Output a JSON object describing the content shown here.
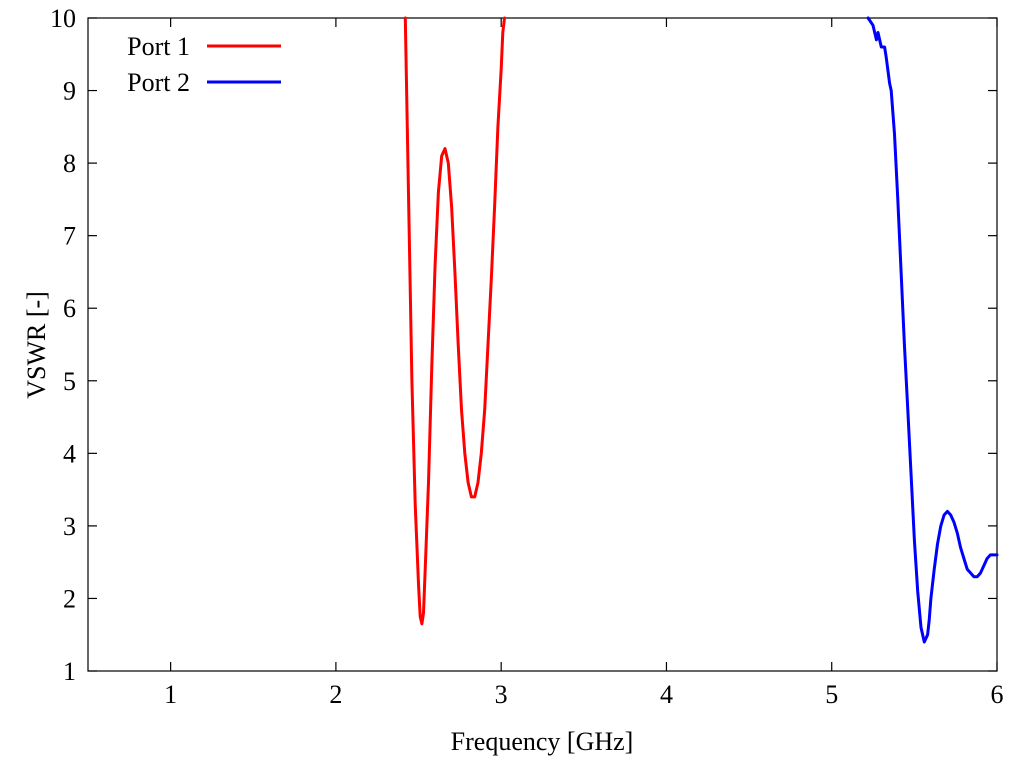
{
  "chart_data": {
    "type": "line",
    "xlabel": "Frequency [GHz]",
    "ylabel": "VSWR [-]",
    "xlim": [
      0.5,
      6
    ],
    "ylim": [
      1,
      10
    ],
    "xticks": [
      1,
      2,
      3,
      4,
      5,
      6
    ],
    "yticks": [
      1,
      2,
      3,
      4,
      5,
      6,
      7,
      8,
      9,
      10
    ],
    "grid": false,
    "legend_position": "top-left",
    "series": [
      {
        "name": "Port 1",
        "color": "#ff0000",
        "x": [
          2.42,
          2.44,
          2.46,
          2.48,
          2.5,
          2.51,
          2.52,
          2.53,
          2.54,
          2.56,
          2.58,
          2.6,
          2.62,
          2.64,
          2.66,
          2.68,
          2.7,
          2.72,
          2.74,
          2.76,
          2.78,
          2.8,
          2.82,
          2.84,
          2.86,
          2.88,
          2.9,
          2.92,
          2.94,
          2.96,
          2.98,
          3.0,
          3.01,
          3.02
        ],
        "y": [
          10.0,
          7.5,
          5.0,
          3.3,
          2.2,
          1.75,
          1.65,
          1.8,
          2.4,
          3.6,
          5.2,
          6.6,
          7.6,
          8.1,
          8.2,
          8.0,
          7.4,
          6.5,
          5.5,
          4.6,
          4.0,
          3.6,
          3.4,
          3.4,
          3.6,
          4.0,
          4.6,
          5.5,
          6.4,
          7.4,
          8.5,
          9.3,
          9.8,
          10.0
        ]
      },
      {
        "name": "Port 2",
        "color": "#0000ff",
        "x": [
          5.22,
          5.25,
          5.27,
          5.28,
          5.3,
          5.32,
          5.33,
          5.35,
          5.36,
          5.38,
          5.4,
          5.42,
          5.44,
          5.46,
          5.48,
          5.5,
          5.52,
          5.54,
          5.56,
          5.58,
          5.59,
          5.6,
          5.62,
          5.64,
          5.66,
          5.68,
          5.7,
          5.72,
          5.74,
          5.76,
          5.78,
          5.8,
          5.82,
          5.84,
          5.86,
          5.88,
          5.9,
          5.92,
          5.94,
          5.96,
          5.98,
          6.0
        ],
        "y": [
          10.0,
          9.9,
          9.7,
          9.8,
          9.6,
          9.6,
          9.45,
          9.1,
          9.0,
          8.4,
          7.5,
          6.5,
          5.5,
          4.6,
          3.7,
          2.8,
          2.1,
          1.6,
          1.4,
          1.5,
          1.7,
          2.0,
          2.4,
          2.75,
          3.0,
          3.15,
          3.2,
          3.15,
          3.05,
          2.9,
          2.7,
          2.55,
          2.4,
          2.35,
          2.3,
          2.3,
          2.35,
          2.45,
          2.55,
          2.6,
          2.6,
          2.6
        ]
      }
    ]
  }
}
